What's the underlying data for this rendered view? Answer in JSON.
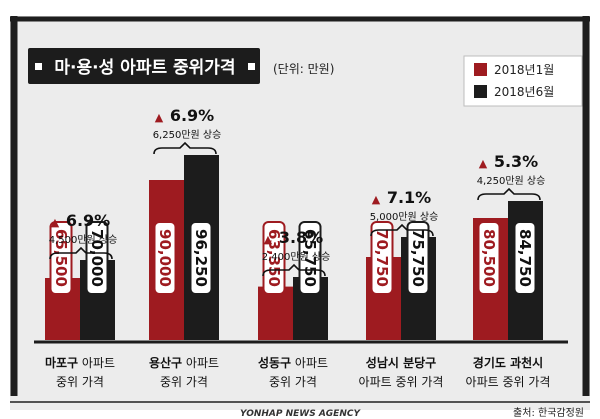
{
  "chart_data": {
    "type": "bar",
    "title": "마·용·성 아파트 중위가격",
    "unit_label": "(단위: 만원)",
    "series": [
      {
        "name": "2018년1월",
        "values": [
          65500,
          90000,
          63350,
          70750,
          80500
        ],
        "labels": [
          "65,500",
          "90,000",
          "63,350",
          "70,750",
          "80,500"
        ]
      },
      {
        "name": "2018년6월",
        "values": [
          70000,
          96250,
          65750,
          75750,
          84750
        ],
        "labels": [
          "70,000",
          "96,250",
          "65,750",
          "75,750",
          "84,750"
        ]
      }
    ],
    "categories": [
      {
        "name": "마포구",
        "suffix": "아파트",
        "line2": "중위 가격"
      },
      {
        "name": "용산구",
        "suffix": "아파트",
        "line2": "중위 가격"
      },
      {
        "name": "성동구",
        "suffix": "아파트",
        "line2": "중위 가격"
      },
      {
        "name": "성남시 분당구",
        "suffix": "",
        "line2": "아파트 중위 가격"
      },
      {
        "name": "경기도 과천시",
        "suffix": "",
        "line2": "아파트 중위 가격"
      }
    ],
    "changes": [
      {
        "pct": "6.9%",
        "amount": "4,500만원 상승"
      },
      {
        "pct": "6.9%",
        "amount": "6,250만원 상승"
      },
      {
        "pct": "3.8%",
        "amount": "2,400만원 상승"
      },
      {
        "pct": "7.1%",
        "amount": "5,000만원 상승"
      },
      {
        "pct": "5.3%",
        "amount": "4,250만원 상승"
      }
    ],
    "up_marker": "▲",
    "source": "출처: 한국감정원",
    "agency": "YONHAP NEWS AGENCY",
    "colors": {
      "jan": "#9e1b20",
      "jun": "#1c1c1c",
      "background": "#ececec",
      "frame": "#1e1e1e"
    }
  }
}
